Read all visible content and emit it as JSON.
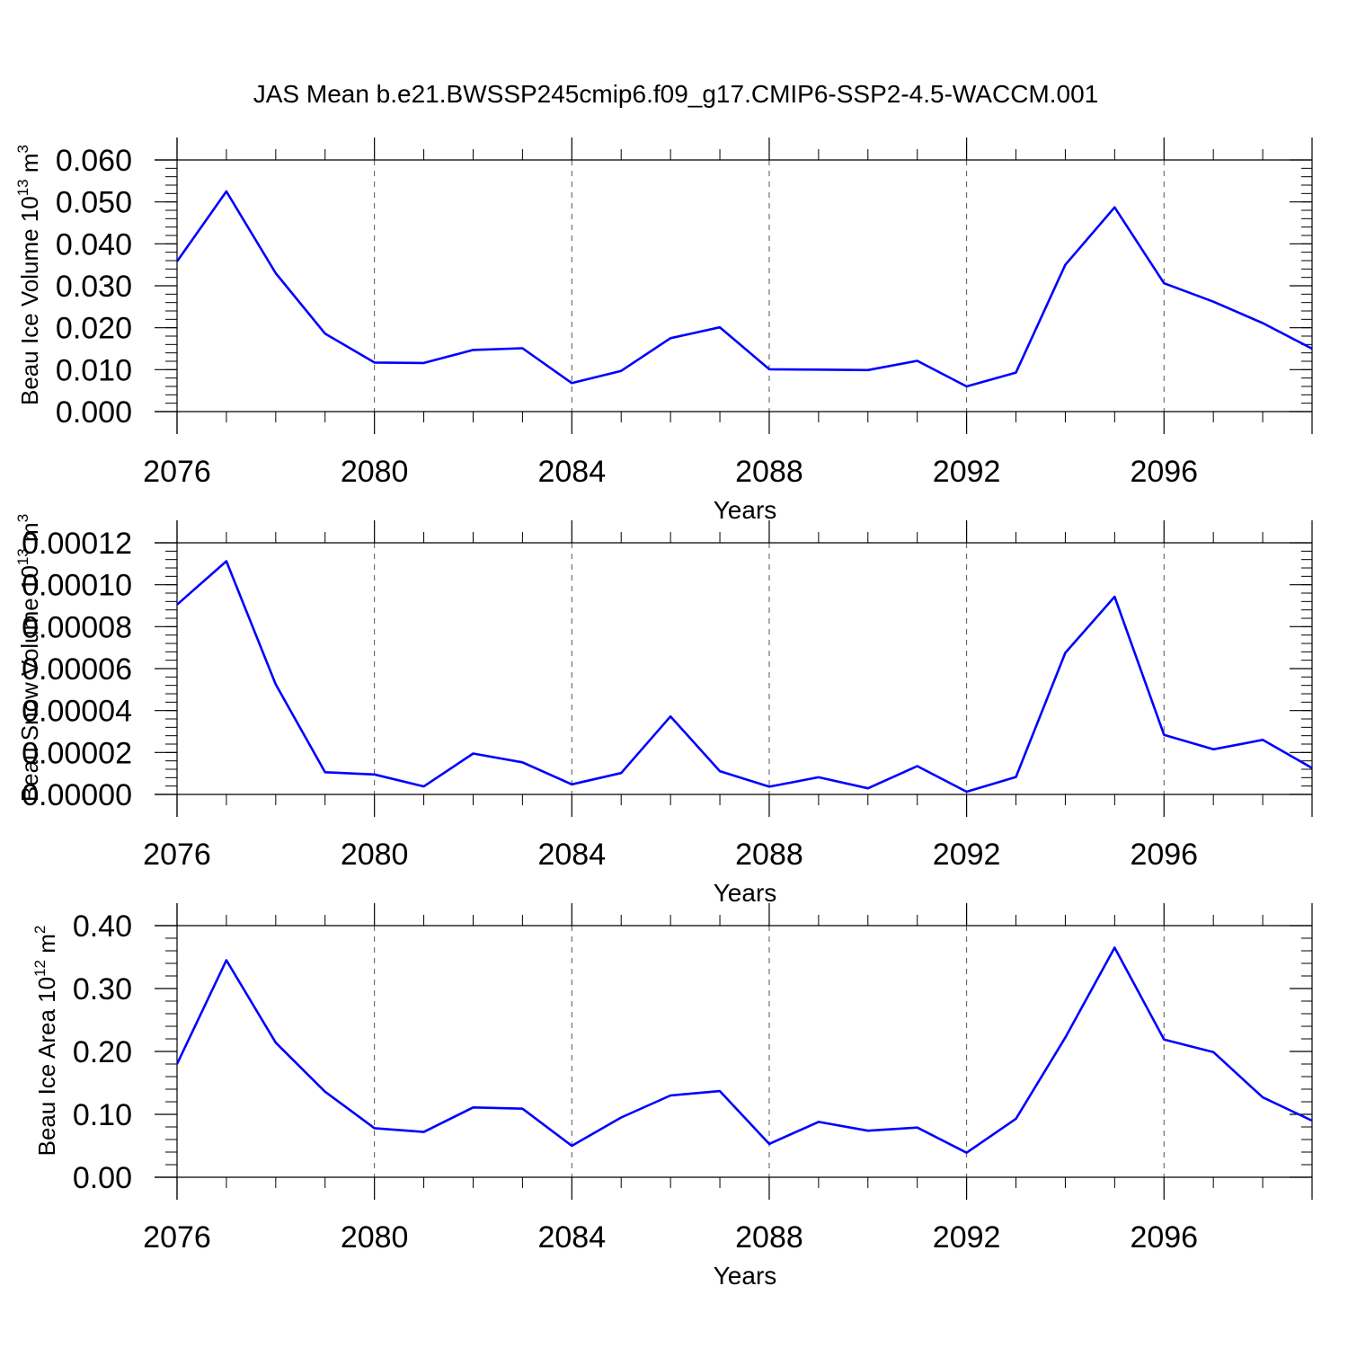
{
  "title": "JAS Mean b.e21.BWSSP245cmip6.f09_g17.CMIP6-SSP2-4.5-WACCM.001",
  "colors": {
    "line": "#0000ff",
    "axis": "#000000",
    "grid": "#555555"
  },
  "chart_data": [
    {
      "type": "line",
      "ylabel": {
        "main": "Beau Ice Volume 10",
        "sup": "13",
        "tail": " m",
        "sup2": "3"
      },
      "xlabel": "Years",
      "xlim": [
        2076,
        2099
      ],
      "ylim": [
        0,
        0.06
      ],
      "x_ticks": [
        2076,
        2080,
        2084,
        2088,
        2092,
        2096
      ],
      "x_tick_labels": [
        "2076",
        "2080",
        "2084",
        "2088",
        "2092",
        "2096"
      ],
      "y_ticks": [
        0,
        0.01,
        0.02,
        0.03,
        0.04,
        0.05,
        0.06
      ],
      "y_tick_labels": [
        "0.000",
        "0.010",
        "0.020",
        "0.030",
        "0.040",
        "0.050",
        "0.060"
      ],
      "y_minor": 0.002,
      "grid": "x-dashed",
      "series": [
        {
          "name": "Beau Ice Volume",
          "x": [
            2076,
            2077,
            2078,
            2079,
            2080,
            2081,
            2082,
            2083,
            2084,
            2085,
            2086,
            2087,
            2088,
            2089,
            2090,
            2091,
            2092,
            2093,
            2094,
            2095,
            2096,
            2097,
            2098,
            2099
          ],
          "values": [
            0.0358,
            0.0525,
            0.033,
            0.0186,
            0.0117,
            0.0116,
            0.0147,
            0.0151,
            0.0068,
            0.0097,
            0.0175,
            0.0201,
            0.0101,
            0.01,
            0.0099,
            0.0121,
            0.006,
            0.0093,
            0.035,
            0.0487,
            0.0306,
            0.0262,
            0.0211,
            0.015
          ]
        }
      ]
    },
    {
      "type": "line",
      "ylabel": {
        "main": "Beau Snow Volume 10",
        "sup": "13",
        "tail": " m",
        "sup2": "3"
      },
      "xlabel": "Years",
      "xlim": [
        2076,
        2099
      ],
      "ylim": [
        0,
        0.00012
      ],
      "x_ticks": [
        2076,
        2080,
        2084,
        2088,
        2092,
        2096
      ],
      "x_tick_labels": [
        "2076",
        "2080",
        "2084",
        "2088",
        "2092",
        "2096"
      ],
      "y_ticks": [
        0,
        2e-05,
        4e-05,
        6e-05,
        8e-05,
        0.0001,
        0.00012
      ],
      "y_tick_labels": [
        "0.00000",
        "0.00002",
        "0.00004",
        "0.00006",
        "0.00008",
        "0.00010",
        "0.00012"
      ],
      "y_minor": 4e-06,
      "grid": "x-dashed",
      "series": [
        {
          "name": "Beau Snow Volume",
          "x": [
            2076,
            2077,
            2078,
            2079,
            2080,
            2081,
            2082,
            2083,
            2084,
            2085,
            2086,
            2087,
            2088,
            2089,
            2090,
            2091,
            2092,
            2093,
            2094,
            2095,
            2096,
            2097,
            2098,
            2099
          ],
          "values": [
            9.05e-05,
            0.0001112,
            5.25e-05,
            1.06e-05,
            9.5e-06,
            3.8e-06,
            1.95e-05,
            1.53e-05,
            4.8e-06,
            1.02e-05,
            3.72e-05,
            1.11e-05,
            3.7e-06,
            8.2e-06,
            2.9e-06,
            1.35e-05,
            1.3e-06,
            8.3e-06,
            6.75e-05,
            9.43e-05,
            2.84e-05,
            2.15e-05,
            2.6e-05,
            1.26e-05
          ]
        }
      ]
    },
    {
      "type": "line",
      "ylabel": {
        "main": "Beau Ice Area 10",
        "sup": "12",
        "tail": " m",
        "sup2": "2"
      },
      "xlabel": "Years",
      "xlim": [
        2076,
        2099
      ],
      "ylim": [
        0,
        0.4
      ],
      "x_ticks": [
        2076,
        2080,
        2084,
        2088,
        2092,
        2096
      ],
      "x_tick_labels": [
        "2076",
        "2080",
        "2084",
        "2088",
        "2092",
        "2096"
      ],
      "y_ticks": [
        0,
        0.1,
        0.2,
        0.3,
        0.4
      ],
      "y_tick_labels": [
        "0.00",
        "0.10",
        "0.20",
        "0.30",
        "0.40"
      ],
      "y_minor": 0.02,
      "grid": "x-dashed",
      "series": [
        {
          "name": "Beau Ice Area",
          "x": [
            2076,
            2077,
            2078,
            2079,
            2080,
            2081,
            2082,
            2083,
            2084,
            2085,
            2086,
            2087,
            2088,
            2089,
            2090,
            2091,
            2092,
            2093,
            2094,
            2095,
            2096,
            2097,
            2098,
            2099
          ],
          "values": [
            0.18,
            0.345,
            0.214,
            0.136,
            0.078,
            0.072,
            0.111,
            0.109,
            0.05,
            0.095,
            0.13,
            0.137,
            0.053,
            0.088,
            0.074,
            0.079,
            0.039,
            0.093,
            0.222,
            0.365,
            0.219,
            0.199,
            0.127,
            0.09
          ]
        }
      ]
    }
  ]
}
